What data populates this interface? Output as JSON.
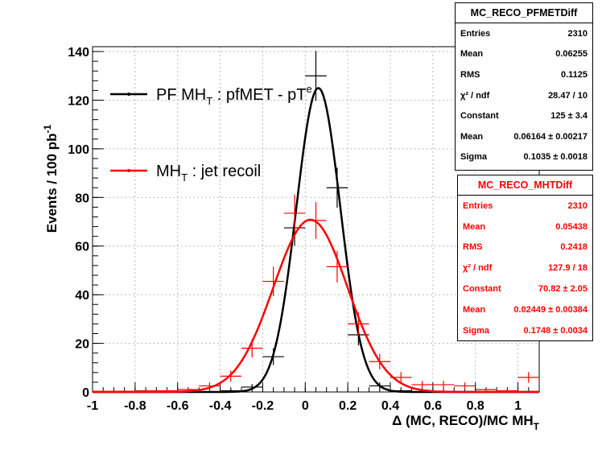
{
  "chart_data": {
    "type": "line",
    "xlabel": "Δ (MC, RECO)/MC MH",
    "xlabel_sub": "T",
    "ylabel": "Events / 100 pb",
    "ylabel_sup": "-1",
    "xlim": [
      -1.0,
      1.1
    ],
    "ylim": [
      0,
      142
    ],
    "x_ticks": [
      -1,
      -0.8,
      -0.6,
      -0.4,
      -0.2,
      0,
      0.2,
      0.4,
      0.6,
      0.8,
      1
    ],
    "x_tick_labels": [
      "-1",
      "-0.8",
      "-0.6",
      "-0.4",
      "-0.2",
      "0",
      "0.2",
      "0.4",
      "0.6",
      "0.8",
      "1"
    ],
    "y_ticks": [
      0,
      20,
      40,
      60,
      80,
      100,
      120,
      140
    ],
    "y_tick_labels": [
      "0",
      "20",
      "40",
      "60",
      "80",
      "100",
      "120",
      "140"
    ],
    "grid": true,
    "legend_position": "top-left",
    "series": [
      {
        "name": "PF MH",
        "name_sub": "T",
        "name_rest": " : pfMET - pT",
        "name_sup": "e",
        "color": "#000000",
        "x_err": 0.05,
        "points": [
          {
            "x": -0.45,
            "y": 0
          },
          {
            "x": -0.35,
            "y": 0.5
          },
          {
            "x": -0.25,
            "y": 2
          },
          {
            "x": -0.15,
            "y": 14.5
          },
          {
            "x": -0.05,
            "y": 67.5
          },
          {
            "x": 0.05,
            "y": 130
          },
          {
            "x": 0.15,
            "y": 84
          },
          {
            "x": 0.25,
            "y": 23.5
          },
          {
            "x": 0.35,
            "y": 2.5
          },
          {
            "x": 0.45,
            "y": 0.5
          }
        ],
        "fit": {
          "constant": 125,
          "mean": 0.06164,
          "sigma": 0.1035
        }
      },
      {
        "name": "MH",
        "name_sub": "T",
        "name_rest": " : jet recoil",
        "name_sup": "",
        "color": "#ff0000",
        "x_err": 0.05,
        "points": [
          {
            "x": -0.95,
            "y": 0.3
          },
          {
            "x": -0.85,
            "y": 0.3
          },
          {
            "x": -0.75,
            "y": 0.5
          },
          {
            "x": -0.65,
            "y": 0.5
          },
          {
            "x": -0.55,
            "y": 1
          },
          {
            "x": -0.45,
            "y": 2.5
          },
          {
            "x": -0.35,
            "y": 6.5
          },
          {
            "x": -0.25,
            "y": 18
          },
          {
            "x": -0.15,
            "y": 45.5
          },
          {
            "x": -0.05,
            "y": 73.5
          },
          {
            "x": 0.05,
            "y": 70.5
          },
          {
            "x": 0.15,
            "y": 51.5
          },
          {
            "x": 0.25,
            "y": 28
          },
          {
            "x": 0.35,
            "y": 12.5
          },
          {
            "x": 0.45,
            "y": 6
          },
          {
            "x": 0.55,
            "y": 3
          },
          {
            "x": 0.65,
            "y": 3
          },
          {
            "x": 0.75,
            "y": 2.5
          },
          {
            "x": 0.85,
            "y": 1
          },
          {
            "x": 0.95,
            "y": 0.5
          },
          {
            "x": 1.05,
            "y": 6
          }
        ],
        "fit": {
          "constant": 70.82,
          "mean": 0.02449,
          "sigma": 0.1748
        }
      }
    ]
  },
  "stats": {
    "black": {
      "title": "MC_RECO_PFMETDiff",
      "rows": [
        {
          "label": "Entries",
          "value": "2310"
        },
        {
          "label": "Mean",
          "value": "0.06255"
        },
        {
          "label": "RMS",
          "value": "0.1125"
        },
        {
          "label": "χ² / ndf",
          "value": "28.47 / 10"
        },
        {
          "label": "Constant",
          "value": "125 ± 3.4"
        },
        {
          "label": "Mean",
          "value": "0.06164 ± 0.00217"
        },
        {
          "label": "Sigma",
          "value": "0.1035 ± 0.0018"
        }
      ]
    },
    "red": {
      "title": "MC_RECO_MHTDiff",
      "rows": [
        {
          "label": "Entries",
          "value": "2310"
        },
        {
          "label": "Mean",
          "value": "0.05438"
        },
        {
          "label": "RMS",
          "value": "0.2418"
        },
        {
          "label": "χ² / ndf",
          "value": "127.9 / 18"
        },
        {
          "label": "Constant",
          "value": "70.82 ± 2.05"
        },
        {
          "label": "Mean",
          "value": "0.02449 ± 0.00384"
        },
        {
          "label": "Sigma",
          "value": "0.1748 ± 0.0034"
        }
      ]
    }
  }
}
